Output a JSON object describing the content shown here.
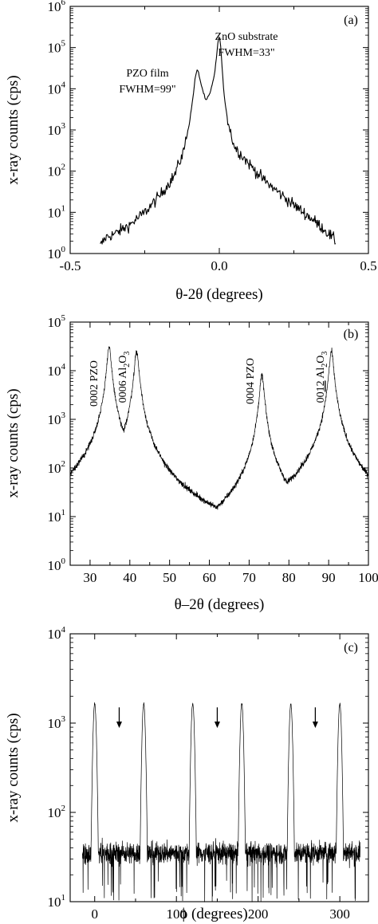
{
  "chart_data": [
    {
      "type": "line",
      "panel": "(a)",
      "xlabel": "θ-2θ (degrees)",
      "ylabel": "x-ray counts (cps)",
      "xlim": [
        -0.5,
        0.5
      ],
      "ylim_log10": [
        0,
        6
      ],
      "y_scale": "log",
      "x_ticks": [
        "-0.5",
        "0.0",
        "0.5"
      ],
      "x_tick_values": [
        -0.5,
        0.0,
        0.5
      ],
      "y_ticks": [
        {
          "base": "10",
          "exp": "0",
          "value": 1
        },
        {
          "base": "10",
          "exp": "1",
          "value": 10
        },
        {
          "base": "10",
          "exp": "2",
          "value": 100
        },
        {
          "base": "10",
          "exp": "3",
          "value": 1000
        },
        {
          "base": "10",
          "exp": "4",
          "value": 10000
        },
        {
          "base": "10",
          "exp": "5",
          "value": 100000
        },
        {
          "base": "10",
          "exp": "6",
          "value": 1000000
        }
      ],
      "annotations": [
        {
          "line1": "ZnO substrate",
          "line2": "FWHM=33\"",
          "x": 0.0,
          "y": 200000
        },
        {
          "line1": "PZO film",
          "line2": "FWHM=99\"",
          "x": -0.075,
          "y": 28000
        }
      ],
      "series": [
        {
          "points": [
            [
              -0.4,
              1.5
            ],
            [
              -0.38,
              2.5
            ],
            [
              -0.35,
              3
            ],
            [
              -0.3,
              5
            ],
            [
              -0.25,
              10
            ],
            [
              -0.2,
              25
            ],
            [
              -0.15,
              80
            ],
            [
              -0.12,
              300
            ],
            [
              -0.1,
              1500
            ],
            [
              -0.09,
              5000
            ],
            [
              -0.08,
              20000
            ],
            [
              -0.075,
              28000
            ],
            [
              -0.07,
              25000
            ],
            [
              -0.06,
              12000
            ],
            [
              -0.045,
              5000
            ],
            [
              -0.03,
              8000
            ],
            [
              -0.015,
              25000
            ],
            [
              -0.005,
              120000
            ],
            [
              0.0,
              200000
            ],
            [
              0.005,
              100000
            ],
            [
              0.015,
              8000
            ],
            [
              0.03,
              1500
            ],
            [
              0.05,
              400
            ],
            [
              0.1,
              150
            ],
            [
              0.15,
              60
            ],
            [
              0.2,
              30
            ],
            [
              0.25,
              15
            ],
            [
              0.3,
              8
            ],
            [
              0.35,
              4
            ],
            [
              0.39,
              2
            ]
          ]
        }
      ]
    },
    {
      "type": "line",
      "panel": "(b)",
      "xlabel": "θ–2θ (degrees)",
      "ylabel": "x-ray counts (cps)",
      "xlim": [
        25,
        100
      ],
      "ylim_log10": [
        0,
        5
      ],
      "y_scale": "log",
      "x_ticks": [
        "30",
        "40",
        "50",
        "60",
        "70",
        "80",
        "90",
        "100"
      ],
      "x_tick_values": [
        30,
        40,
        50,
        60,
        70,
        80,
        90,
        100
      ],
      "y_ticks": [
        {
          "base": "10",
          "exp": "0",
          "value": 1
        },
        {
          "base": "10",
          "exp": "1",
          "value": 10
        },
        {
          "base": "10",
          "exp": "2",
          "value": 100
        },
        {
          "base": "10",
          "exp": "3",
          "value": 1000
        },
        {
          "base": "10",
          "exp": "4",
          "value": 10000
        },
        {
          "base": "10",
          "exp": "5",
          "value": 100000
        }
      ],
      "peaks": [
        {
          "label": "0002 PZO",
          "x": 34.8,
          "y": 30000
        },
        {
          "label": "0006 Al",
          "sub": "2",
          "label_end": "O",
          "sub2": "3",
          "x": 41.7,
          "y": 25000
        },
        {
          "label": "0004 PZO",
          "x": 73.2,
          "y": 8000
        },
        {
          "label": "00",
          "underlined": "12",
          "label_tail": " Al",
          "sub": "2",
          "label_end": "O",
          "sub2": "3",
          "x": 90.7,
          "y": 25000
        }
      ],
      "baseline_cps": [
        1,
        3
      ]
    },
    {
      "type": "line",
      "panel": "(c)",
      "xlabel": "ϕ (degrees)",
      "ylabel": "x-ray counts (cps)",
      "xlim": [
        -30,
        335
      ],
      "ylim_log10": [
        1,
        4
      ],
      "y_scale": "log",
      "x_ticks": [
        "0",
        "100",
        "200",
        "300"
      ],
      "x_tick_values": [
        0,
        100,
        200,
        300
      ],
      "y_ticks": [
        {
          "base": "10",
          "exp": "1",
          "value": 10
        },
        {
          "base": "10",
          "exp": "2",
          "value": 100
        },
        {
          "base": "10",
          "exp": "3",
          "value": 1000
        },
        {
          "base": "10",
          "exp": "4",
          "value": 10000
        }
      ],
      "peaks_x": [
        0,
        60,
        120,
        180,
        240,
        300
      ],
      "peak_cps": 1650,
      "baseline_cps": 35,
      "data_range_x": [
        -15,
        325
      ],
      "arrows_x": [
        30,
        150,
        270
      ]
    }
  ]
}
